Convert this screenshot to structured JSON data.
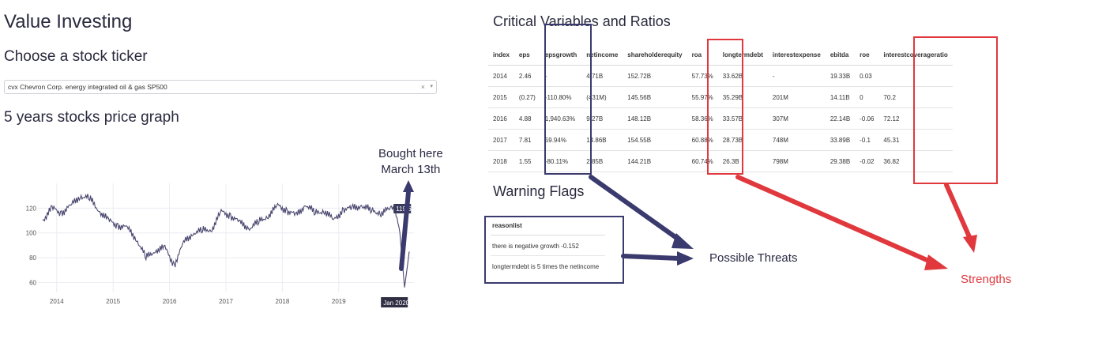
{
  "app": {
    "title": "Value Investing",
    "ticker_heading": "Choose a stock ticker",
    "graph_heading": "5 years stocks price graph"
  },
  "ticker_select": {
    "selected": "cvx Chevron Corp. energy integrated oil & gas SP500",
    "clear_symbol": "×",
    "arrow_symbol": "▾"
  },
  "chart_data": {
    "type": "line",
    "x_ticks": [
      "2014",
      "2015",
      "2016",
      "2017",
      "2018",
      "2019"
    ],
    "x_range": [
      "2013-09",
      "2020-05"
    ],
    "y_ticks": [
      60,
      80,
      100,
      120
    ],
    "ylim": [
      52,
      140
    ],
    "hover_x_label": "Jan 2020",
    "hover_y_label": "119.6",
    "series": [
      {
        "x": [
          "2013-10",
          "2013-12",
          "2014-02",
          "2014-04",
          "2014-06",
          "2014-08",
          "2014-10",
          "2014-12",
          "2015-02",
          "2015-04",
          "2015-06",
          "2015-08",
          "2015-10",
          "2015-12",
          "2016-02",
          "2016-04",
          "2016-06",
          "2016-08",
          "2016-10",
          "2016-12",
          "2017-02",
          "2017-04",
          "2017-06",
          "2017-08",
          "2017-10",
          "2017-12",
          "2018-02",
          "2018-04",
          "2018-06",
          "2018-08",
          "2018-10",
          "2018-12",
          "2019-02",
          "2019-04",
          "2019-06",
          "2019-08",
          "2019-10",
          "2019-12",
          "2020-01",
          "2020-02",
          "2020-03",
          "2020-04"
        ],
        "y": [
          110,
          120,
          116,
          122,
          130,
          128,
          118,
          110,
          106,
          104,
          95,
          80,
          86,
          88,
          74,
          92,
          100,
          102,
          103,
          117,
          114,
          108,
          104,
          109,
          114,
          122,
          118,
          114,
          123,
          116,
          118,
          110,
          119,
          120,
          122,
          118,
          116,
          120,
          119.6,
          100,
          56,
          85
        ]
      }
    ]
  },
  "ratios": {
    "title": "Critical Variables and Ratios",
    "columns": [
      "index",
      "eps",
      "epsgrowth",
      "netincome",
      "shareholderequity",
      "roa",
      "longtermdebt",
      "interestexpense",
      "ebitda",
      "roe",
      "interestcoverageratio"
    ],
    "rows": [
      [
        "2014",
        "2.46",
        "-",
        "4.71B",
        "152.72B",
        "57.73%",
        "33.62B",
        "-",
        "19.33B",
        "0.03",
        ""
      ],
      [
        "2015",
        "(0.27)",
        "-110.80%",
        "(431M)",
        "145.56B",
        "55.97%",
        "35.29B",
        "201M",
        "14.11B",
        "0",
        "70.2"
      ],
      [
        "2016",
        "4.88",
        "1,940.63%",
        "9.27B",
        "148.12B",
        "58.36%",
        "33.57B",
        "307M",
        "22.14B",
        "-0.06",
        "72.12"
      ],
      [
        "2017",
        "7.81",
        "59.94%",
        "14.86B",
        "154.55B",
        "60.88%",
        "28.73B",
        "748M",
        "33.89B",
        "-0.1",
        "45.31"
      ],
      [
        "2018",
        "1.55",
        "-80.11%",
        "2.85B",
        "144.21B",
        "60.74%",
        "26.3B",
        "798M",
        "29.38B",
        "-0.02",
        "36.82"
      ]
    ]
  },
  "warnings": {
    "title": "Warning Flags",
    "header": "reasonlist",
    "items": [
      "there is negative growth -0.152",
      "longtermdebt is 5 times the netincome"
    ]
  },
  "annotations": {
    "bought_line1": "Bought here",
    "bought_line2": "March 13th",
    "threats": "Possible Threats",
    "strengths": "Strengths"
  },
  "colors": {
    "navy": "#3a3a6e",
    "red": "#e0383d",
    "line": "#4a4870"
  }
}
